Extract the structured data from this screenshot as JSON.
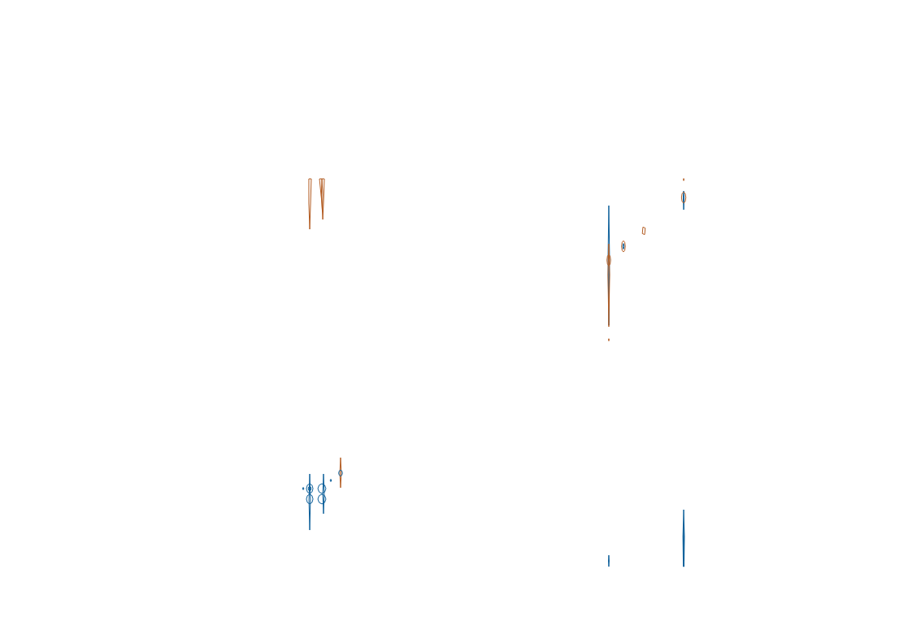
{
  "chart_data": [
    {
      "type": "contour",
      "xlim": [
        0,
        100
      ],
      "ylim": [
        0,
        100
      ],
      "tick_labels": false,
      "series": [
        {
          "color": "#b35c22",
          "values": [
            [
              33.3,
              92
            ],
            [
              35.3,
              92
            ],
            [
              34.7,
              80
            ],
            [
              34,
              67.2
            ],
            [
              33.3,
              80
            ],
            [
              33.3,
              92
            ]
          ]
        },
        {
          "color": "#b35c22",
          "values": [
            [
              42,
              92
            ],
            [
              46,
              92
            ],
            [
              45.3,
              80
            ],
            [
              44.7,
              72
            ],
            [
              44,
              80
            ],
            [
              42,
              92
            ]
          ]
        },
        {
          "color": "#b35c22",
          "values": [
            [
              44,
              92
            ],
            [
              44.7,
              84
            ],
            [
              44.4,
              76
            ],
            [
              43.6,
              84
            ],
            [
              44,
              92
            ]
          ]
        }
      ]
    },
    {
      "type": "contour",
      "xlim": [
        0,
        100
      ],
      "ylim": [
        0,
        100
      ],
      "tick_labels": false,
      "series": [
        {
          "color": "#b35c22",
          "values": [
            [
              59.3,
              84.7
            ],
            [
              59.9,
              72
            ],
            [
              59.3,
              60
            ],
            [
              58.7,
              72
            ],
            [
              59.3,
              84.7
            ]
          ]
        },
        {
          "color": "#0b5e99",
          "values": [
            [
              34,
              71.3
            ],
            [
              34.6,
              50
            ],
            [
              34,
              25.3
            ],
            [
              33.4,
              50
            ],
            [
              34,
              71.3
            ]
          ]
        },
        {
          "color": "#0b5e99",
          "values": [
            [
              45.3,
              71.3
            ],
            [
              45.9,
              55
            ],
            [
              45.3,
              38.7
            ],
            [
              44.7,
              55
            ],
            [
              45.3,
              71.3
            ]
          ]
        },
        {
          "color": "#0b5e99",
          "values": [
            [
              34,
              63.3
            ],
            [
              35.9,
              62.1
            ],
            [
              36.7,
              59.3
            ],
            [
              35.9,
              56.5
            ],
            [
              34,
              55.3
            ],
            [
              32.1,
              56.5
            ],
            [
              31.3,
              59.3
            ],
            [
              32.1,
              62.1
            ],
            [
              34,
              63.3
            ]
          ]
        },
        {
          "color": "#0b5e99",
          "values": [
            [
              34,
              61.3
            ],
            [
              34.8,
              60.7
            ],
            [
              35.2,
              59.3
            ],
            [
              34.8,
              57.9
            ],
            [
              34,
              57.3
            ],
            [
              33.2,
              57.9
            ],
            [
              32.8,
              59.3
            ],
            [
              33.2,
              60.7
            ],
            [
              34,
              61.3
            ]
          ]
        },
        {
          "color": "#0b5e99",
          "values": [
            [
              34,
              54.7
            ],
            [
              35.9,
              53.5
            ],
            [
              36.7,
              50.7
            ],
            [
              35.9,
              47.9
            ],
            [
              34,
              46.7
            ],
            [
              32.1,
              47.9
            ],
            [
              31.3,
              50.7
            ],
            [
              32.1,
              53.5
            ],
            [
              34,
              54.7
            ]
          ]
        },
        {
          "color": "#0b5e99",
          "values": [
            [
              44,
              63.3
            ],
            [
              46.3,
              62.1
            ],
            [
              47.3,
              59.3
            ],
            [
              46.3,
              56.5
            ],
            [
              44,
              55.3
            ],
            [
              41.7,
              56.5
            ],
            [
              40.7,
              59.3
            ],
            [
              41.7,
              62.1
            ],
            [
              44,
              63.3
            ]
          ]
        },
        {
          "color": "#0b5e99",
          "values": [
            [
              44,
              54.7
            ],
            [
              46.3,
              53.5
            ],
            [
              47.3,
              50.7
            ],
            [
              46.3,
              47.9
            ],
            [
              44,
              46.7
            ],
            [
              41.7,
              47.9
            ],
            [
              40.7,
              50.7
            ],
            [
              41.7,
              53.5
            ],
            [
              44,
              54.7
            ]
          ]
        },
        {
          "color": "#0b5e99",
          "values": [
            [
              59.3,
              74.5
            ],
            [
              60.4,
              73.8
            ],
            [
              60.8,
              72
            ],
            [
              60.4,
              70.3
            ],
            [
              59.3,
              69.5
            ],
            [
              58.2,
              70.3
            ],
            [
              57.8,
              72
            ],
            [
              58.2,
              73.8
            ],
            [
              59.3,
              74.5
            ]
          ]
        },
        {
          "color": "#0b5e99",
          "values": [
            [
              28.7,
              60.3
            ],
            [
              29.3,
              59.3
            ],
            [
              28.7,
              58.3
            ],
            [
              28.1,
              59.3
            ],
            [
              28.7,
              60.3
            ]
          ]
        },
        {
          "color": "#0b5e99",
          "values": [
            [
              51.3,
              67
            ],
            [
              51.9,
              66
            ],
            [
              51.3,
              65
            ],
            [
              50.7,
              66
            ],
            [
              51.3,
              67
            ]
          ]
        }
      ]
    },
    {
      "type": "contour",
      "xlim": [
        0,
        100
      ],
      "ylim": [
        0,
        100
      ],
      "tick_labels": false,
      "series": [
        {
          "color": "#0b5e99",
          "values": [
            [
              19.3,
              77
            ],
            [
              19.9,
              50
            ],
            [
              19.3,
              13
            ],
            [
              18.7,
              50
            ],
            [
              19.3,
              77
            ]
          ]
        },
        {
          "color": "#b35c22",
          "values": [
            [
              19.3,
              56.5
            ],
            [
              20,
              40
            ],
            [
              19.3,
              12.2
            ],
            [
              18.6,
              40
            ],
            [
              19.3,
              56.5
            ]
          ]
        },
        {
          "color": "#b35c22",
          "values": [
            [
              19.3,
              50.8
            ],
            [
              20.4,
              49.9
            ],
            [
              20.8,
              47.8
            ],
            [
              20.4,
              45.7
            ],
            [
              19.3,
              44.8
            ],
            [
              18.2,
              45.7
            ],
            [
              17.8,
              47.8
            ],
            [
              18.2,
              49.9
            ],
            [
              19.3,
              50.8
            ]
          ]
        },
        {
          "color": "#b35c22",
          "values": [
            [
              19.3,
              5.8
            ],
            [
              19.6,
              5.2
            ],
            [
              19.3,
              4.6
            ],
            [
              19,
              5.2
            ],
            [
              19.3,
              5.8
            ]
          ]
        },
        {
          "color": "#b35c22",
          "values": [
            [
              31.3,
              58.2
            ],
            [
              32.4,
              57.3
            ],
            [
              32.8,
              55.2
            ],
            [
              32.4,
              53.1
            ],
            [
              31.3,
              52.2
            ],
            [
              30.2,
              53.1
            ],
            [
              29.8,
              55.2
            ],
            [
              30.2,
              57.3
            ],
            [
              31.3,
              58.2
            ]
          ]
        },
        {
          "color": "#0b5e99",
          "values": [
            [
              31.3,
              56.7
            ],
            [
              31.9,
              55.2
            ],
            [
              31.3,
              53.7
            ],
            [
              30.7,
              55.2
            ],
            [
              31.3,
              56.7
            ]
          ]
        },
        {
          "color": "#b35c22",
          "values": [
            [
              47.3,
              65.5
            ],
            [
              49.2,
              65
            ],
            [
              48.7,
              61.5
            ],
            [
              46.8,
              62
            ],
            [
              47.3,
              65.5
            ]
          ]
        },
        {
          "color": "#0b5e99",
          "values": [
            [
              80.7,
              84.8
            ],
            [
              81.1,
              81.3
            ],
            [
              80.7,
              74.8
            ],
            [
              80.3,
              81.3
            ],
            [
              80.7,
              84.8
            ]
          ]
        },
        {
          "color": "#b35c22",
          "values": [
            [
              80.7,
              84.3
            ],
            [
              82,
              83.4
            ],
            [
              82.5,
              81.3
            ],
            [
              82,
              79.2
            ],
            [
              80.7,
              78.3
            ],
            [
              79.4,
              79.2
            ],
            [
              78.9,
              81.3
            ],
            [
              79.4,
              83.4
            ],
            [
              80.7,
              84.3
            ]
          ]
        },
        {
          "color": "#b35c22",
          "values": [
            [
              80.7,
              91.5
            ],
            [
              81,
              90.9
            ],
            [
              80.7,
              90.3
            ],
            [
              80.4,
              90.9
            ],
            [
              80.7,
              91.5
            ]
          ]
        }
      ]
    },
    {
      "type": "contour",
      "xlim": [
        0,
        100
      ],
      "ylim": [
        0,
        100
      ],
      "tick_labels": false,
      "series": [
        {
          "color": "#0b5e99",
          "values": [
            [
              19.3,
              17
            ],
            [
              19.6,
              10
            ],
            [
              19.3,
              3
            ],
            [
              19,
              10
            ],
            [
              19.3,
              17
            ]
          ]
        },
        {
          "color": "#0b5e99",
          "values": [
            [
              80.7,
              73
            ],
            [
              81.3,
              40
            ],
            [
              81,
              3
            ],
            [
              80.4,
              3
            ],
            [
              80.1,
              40
            ],
            [
              80.7,
              73
            ]
          ]
        },
        {
          "color": "#0b5e99",
          "values": [
            [
              80.7,
              55
            ],
            [
              81,
              35
            ],
            [
              80.7,
              10
            ],
            [
              80.4,
              35
            ],
            [
              80.7,
              55
            ]
          ]
        }
      ]
    }
  ]
}
